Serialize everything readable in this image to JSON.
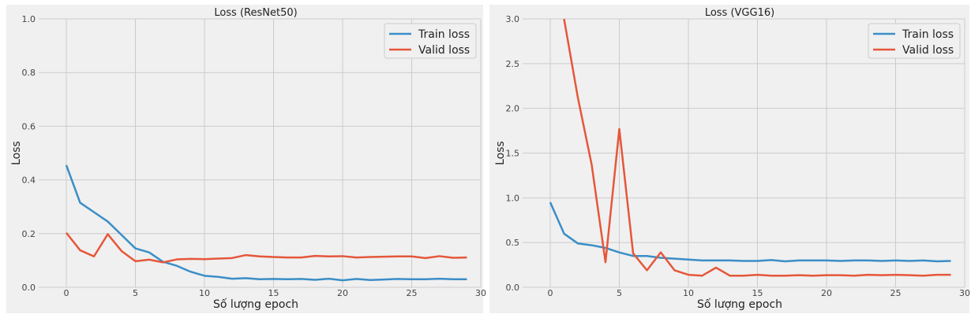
{
  "chart_data": [
    {
      "type": "line",
      "title": "Loss (ResNet50)",
      "xlabel": "Số lượng epoch",
      "ylabel": "Loss",
      "xlim": [
        -2,
        30
      ],
      "ylim": [
        0,
        1.0
      ],
      "xticks": [
        0,
        5,
        10,
        15,
        20,
        25,
        30
      ],
      "yticks": [
        0.0,
        0.2,
        0.4,
        0.6,
        0.8,
        1.0
      ],
      "ytick_labels": [
        "0.0",
        "0.2",
        "0.4",
        "0.6",
        "0.8",
        "1.0"
      ],
      "grid": true,
      "legend": "top-right",
      "x": [
        0,
        1,
        2,
        3,
        4,
        5,
        6,
        7,
        8,
        9,
        10,
        11,
        12,
        13,
        14,
        15,
        16,
        17,
        18,
        19,
        20,
        21,
        22,
        23,
        24,
        25,
        26,
        27,
        28,
        29
      ],
      "series": [
        {
          "name": "Train loss",
          "color": "#3b8ec7",
          "values": [
            0.455,
            0.315,
            0.28,
            0.245,
            0.195,
            0.145,
            0.13,
            0.095,
            0.08,
            0.058,
            0.043,
            0.039,
            0.032,
            0.034,
            0.03,
            0.031,
            0.03,
            0.031,
            0.028,
            0.032,
            0.026,
            0.031,
            0.027,
            0.029,
            0.031,
            0.03,
            0.03,
            0.032,
            0.03,
            0.03
          ]
        },
        {
          "name": "Valid loss",
          "color": "#e5573b",
          "values": [
            0.203,
            0.138,
            0.115,
            0.198,
            0.135,
            0.097,
            0.103,
            0.093,
            0.104,
            0.106,
            0.105,
            0.107,
            0.109,
            0.12,
            0.115,
            0.113,
            0.111,
            0.111,
            0.117,
            0.115,
            0.116,
            0.111,
            0.113,
            0.114,
            0.115,
            0.115,
            0.109,
            0.116,
            0.11,
            0.111
          ]
        }
      ]
    },
    {
      "type": "line",
      "title": "Loss (VGG16)",
      "xlabel": "Số lượng epoch",
      "ylabel": "Loss",
      "xlim": [
        -2,
        30
      ],
      "ylim": [
        0,
        3.0
      ],
      "xticks": [
        0,
        5,
        10,
        15,
        20,
        25,
        30
      ],
      "yticks": [
        0.0,
        0.5,
        1.0,
        1.5,
        2.0,
        2.5,
        3.0
      ],
      "ytick_labels": [
        "0.0",
        "0.5",
        "1.0",
        "1.5",
        "2.0",
        "2.5",
        "3.0"
      ],
      "grid": true,
      "legend": "top-right",
      "x": [
        0,
        1,
        2,
        3,
        4,
        5,
        6,
        7,
        8,
        9,
        10,
        11,
        12,
        13,
        14,
        15,
        16,
        17,
        18,
        19,
        20,
        21,
        22,
        23,
        24,
        25,
        26,
        27,
        28,
        29
      ],
      "series": [
        {
          "name": "Train loss",
          "color": "#3b8ec7",
          "values": [
            0.95,
            0.6,
            0.49,
            0.47,
            0.44,
            0.39,
            0.35,
            0.35,
            0.33,
            0.32,
            0.31,
            0.3,
            0.3,
            0.3,
            0.295,
            0.295,
            0.305,
            0.29,
            0.3,
            0.3,
            0.3,
            0.295,
            0.3,
            0.3,
            0.295,
            0.3,
            0.295,
            0.3,
            0.29,
            0.295
          ]
        },
        {
          "name": "Valid loss",
          "color": "#e5573b",
          "values": [
            null,
            3.0,
            2.12,
            1.37,
            0.28,
            1.77,
            0.38,
            0.19,
            0.39,
            0.19,
            0.14,
            0.13,
            0.22,
            0.13,
            0.13,
            0.14,
            0.13,
            0.13,
            0.135,
            0.13,
            0.135,
            0.135,
            0.13,
            0.14,
            0.135,
            0.14,
            0.135,
            0.13,
            0.14,
            0.14
          ]
        }
      ]
    }
  ]
}
